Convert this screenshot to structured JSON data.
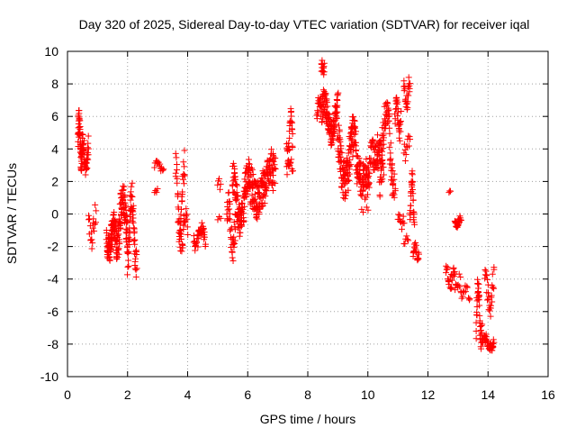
{
  "chart_data": {
    "type": "scatter",
    "title": "Day 320 of 2025, Sidereal Day-to-day VTEC variation (SDTVAR) for receiver iqal",
    "xlabel": "GPS time / hours",
    "ylabel": "SDTVAR / TECUs",
    "xlim": [
      0,
      16
    ],
    "ylim": [
      -10,
      10
    ],
    "xticks": [
      0,
      2,
      4,
      6,
      8,
      10,
      12,
      14,
      16
    ],
    "yticks": [
      -10,
      -8,
      -6,
      -4,
      -2,
      0,
      2,
      4,
      6,
      8,
      10
    ],
    "grid": true,
    "marker": "+",
    "series_color": "#ff0000",
    "clusters": [
      {
        "x0": 0.35,
        "x1": 0.5,
        "yc": 4.5,
        "ya": 1.2,
        "spread": 0.8,
        "n": 60
      },
      {
        "x0": 0.5,
        "x1": 0.7,
        "yc": 3.6,
        "ya": 0.8,
        "spread": 0.6,
        "n": 40
      },
      {
        "x0": 0.7,
        "x1": 0.95,
        "yc": -0.8,
        "ya": 0.8,
        "spread": 0.6,
        "n": 20
      },
      {
        "x0": 1.3,
        "x1": 1.6,
        "yc": -1.5,
        "ya": 0.8,
        "spread": 0.9,
        "n": 80
      },
      {
        "x0": 1.6,
        "x1": 2.0,
        "yc": -0.5,
        "ya": 1.5,
        "spread": 1.0,
        "n": 100
      },
      {
        "x0": 2.0,
        "x1": 2.3,
        "yc": -1.0,
        "ya": 2.0,
        "spread": 1.0,
        "n": 60
      },
      {
        "x0": 2.9,
        "x1": 3.2,
        "yc": 3.0,
        "ya": 0.2,
        "spread": 0.2,
        "n": 15
      },
      {
        "x0": 2.9,
        "x1": 3.0,
        "yc": 1.3,
        "ya": 0.1,
        "spread": 0.2,
        "n": 4
      },
      {
        "x0": 3.6,
        "x1": 3.9,
        "yc": 1.0,
        "ya": 2.0,
        "spread": 1.0,
        "n": 40
      },
      {
        "x0": 3.7,
        "x1": 4.0,
        "yc": -1.0,
        "ya": 0.8,
        "spread": 0.7,
        "n": 30
      },
      {
        "x0": 4.2,
        "x1": 4.6,
        "yc": -1.4,
        "ya": 0.5,
        "spread": 0.4,
        "n": 40
      },
      {
        "x0": 5.0,
        "x1": 5.1,
        "yc": 1.8,
        "ya": 0.1,
        "spread": 0.3,
        "n": 5
      },
      {
        "x0": 5.0,
        "x1": 5.1,
        "yc": -0.2,
        "ya": 0.1,
        "spread": 0.1,
        "n": 3
      },
      {
        "x0": 5.3,
        "x1": 5.6,
        "yc": -0.8,
        "ya": 1.2,
        "spread": 1.0,
        "n": 40
      },
      {
        "x0": 5.5,
        "x1": 6.0,
        "yc": 0.8,
        "ya": 1.5,
        "spread": 1.0,
        "n": 100
      },
      {
        "x0": 6.0,
        "x1": 6.9,
        "yc": 1.8,
        "ya": 1.0,
        "spread": 1.2,
        "n": 170
      },
      {
        "x0": 7.3,
        "x1": 7.5,
        "yc": 4.8,
        "ya": 1.2,
        "spread": 0.6,
        "n": 30
      },
      {
        "x0": 7.3,
        "x1": 7.5,
        "yc": 3.0,
        "ya": 0.3,
        "spread": 0.3,
        "n": 12
      },
      {
        "x0": 8.3,
        "x1": 8.5,
        "yc": 6.5,
        "ya": 0.5,
        "spread": 0.5,
        "n": 25
      },
      {
        "x0": 8.45,
        "x1": 8.55,
        "yc": 9.0,
        "ya": 0.3,
        "spread": 0.3,
        "n": 15
      },
      {
        "x0": 8.5,
        "x1": 9.0,
        "yc": 6.0,
        "ya": 1.0,
        "spread": 0.8,
        "n": 110
      },
      {
        "x0": 9.0,
        "x1": 9.6,
        "yc": 3.5,
        "ya": 1.5,
        "spread": 1.2,
        "n": 130
      },
      {
        "x0": 9.6,
        "x1": 10.5,
        "yc": 3.0,
        "ya": 1.0,
        "spread": 1.2,
        "n": 150
      },
      {
        "x0": 9.8,
        "x1": 10.0,
        "yc": 0.5,
        "ya": 0.2,
        "spread": 0.3,
        "n": 5
      },
      {
        "x0": 10.4,
        "x1": 10.9,
        "yc": 4.0,
        "ya": 2.5,
        "spread": 1.0,
        "n": 80
      },
      {
        "x0": 10.9,
        "x1": 11.1,
        "yc": 6.0,
        "ya": 1.0,
        "spread": 0.6,
        "n": 30
      },
      {
        "x0": 11.0,
        "x1": 11.2,
        "yc": -0.5,
        "ya": 0.3,
        "spread": 0.3,
        "n": 12
      },
      {
        "x0": 11.2,
        "x1": 11.4,
        "yc": 7.5,
        "ya": 0.6,
        "spread": 0.6,
        "n": 25
      },
      {
        "x0": 11.2,
        "x1": 11.4,
        "yc": 4.0,
        "ya": 0.5,
        "spread": 0.5,
        "n": 12
      },
      {
        "x0": 11.2,
        "x1": 11.35,
        "yc": -1.6,
        "ya": 0.1,
        "spread": 0.2,
        "n": 6
      },
      {
        "x0": 11.4,
        "x1": 11.55,
        "yc": 1.0,
        "ya": 1.2,
        "spread": 0.5,
        "n": 30
      },
      {
        "x0": 11.5,
        "x1": 11.7,
        "yc": -2.3,
        "ya": 0.3,
        "spread": 0.3,
        "n": 20
      },
      {
        "x0": 12.7,
        "x1": 12.75,
        "yc": 1.4,
        "ya": 0.0,
        "spread": 0.1,
        "n": 3
      },
      {
        "x0": 12.6,
        "x1": 12.9,
        "yc": -3.8,
        "ya": 0.4,
        "spread": 0.4,
        "n": 25
      },
      {
        "x0": 12.9,
        "x1": 13.1,
        "yc": -0.5,
        "ya": 0.2,
        "spread": 0.2,
        "n": 25
      },
      {
        "x0": 12.9,
        "x1": 13.1,
        "yc": -4.3,
        "ya": 0.3,
        "spread": 0.4,
        "n": 10
      },
      {
        "x0": 13.1,
        "x1": 13.4,
        "yc": -4.8,
        "ya": 0.3,
        "spread": 0.3,
        "n": 12
      },
      {
        "x0": 13.6,
        "x1": 13.8,
        "yc": -6.0,
        "ya": 1.5,
        "spread": 0.8,
        "n": 40
      },
      {
        "x0": 13.8,
        "x1": 14.2,
        "yc": -7.9,
        "ya": 0.3,
        "spread": 0.3,
        "n": 40
      },
      {
        "x0": 13.9,
        "x1": 14.2,
        "yc": -4.8,
        "ya": 1.0,
        "spread": 0.7,
        "n": 30
      }
    ]
  }
}
